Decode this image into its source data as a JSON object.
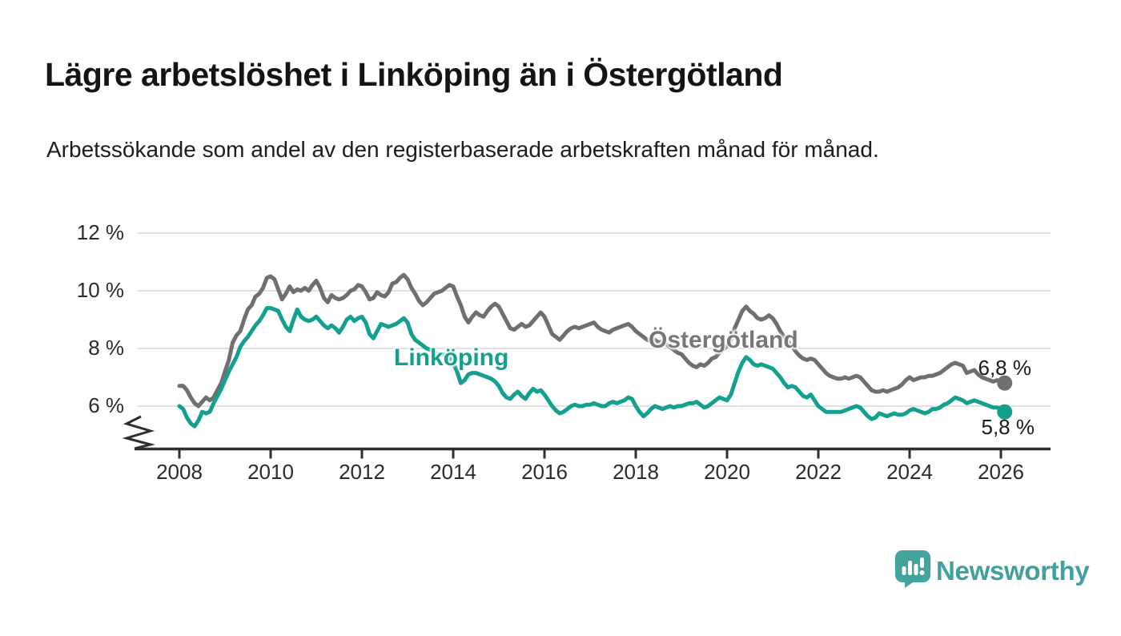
{
  "header": {
    "title": "Lägre arbetslöshet i Linköping än i Östergötland",
    "subtitle": "Arbetssökande som andel av den registerbaserade arbetskraften månad för månad."
  },
  "branding": {
    "logo_text": "Newsworthy",
    "logo_color": "#3FA19D",
    "logo_icon": "bar-chart-speech-bubble-icon"
  },
  "chart_data": {
    "type": "line",
    "title": "Lägre arbetslöshet i Linköping än i Östergötland",
    "subtitle": "Arbetssökande som andel av den registerbaserade arbetskraften månad för månad.",
    "grid": "horizontal",
    "legend_position": "inline-labels",
    "colors": {
      "grid": "#E1E1E1",
      "axis": "#2E2E2E",
      "text": "#2b2b2b"
    },
    "y_axis": {
      "unit": "%",
      "broken_axis": true,
      "ticks": [
        12,
        10,
        8,
        6
      ],
      "tick_labels": [
        "12 %",
        "10 %",
        "8 %",
        "6 %"
      ],
      "range_shown": [
        5.0,
        12.3
      ]
    },
    "x_axis": {
      "ticks": [
        2008,
        2010,
        2012,
        2014,
        2016,
        2018,
        2020,
        2022,
        2024,
        2026
      ],
      "tick_labels": [
        "2008",
        "2010",
        "2012",
        "2014",
        "2016",
        "2018",
        "2020",
        "2022",
        "2024",
        "2026"
      ],
      "range": [
        2008.0,
        2026.17
      ]
    },
    "series": [
      {
        "name": "Östergötland",
        "color": "#6F6F72",
        "end_label": "6,8 %",
        "end_value": 6.8,
        "start_year": 2008,
        "points_per_year": 12,
        "values": [
          6.7,
          6.7,
          6.55,
          6.3,
          6.1,
          6.0,
          6.15,
          6.3,
          6.2,
          6.3,
          6.55,
          6.8,
          7.2,
          7.6,
          8.2,
          8.45,
          8.6,
          9.0,
          9.35,
          9.5,
          9.8,
          9.9,
          10.1,
          10.45,
          10.5,
          10.4,
          10.05,
          9.7,
          9.9,
          10.15,
          9.95,
          10.05,
          10.0,
          10.1,
          10.0,
          10.2,
          10.35,
          10.1,
          9.75,
          9.6,
          9.85,
          9.75,
          9.7,
          9.75,
          9.85,
          10.0,
          10.05,
          10.2,
          10.15,
          9.95,
          9.7,
          9.75,
          9.95,
          9.85,
          9.8,
          9.95,
          10.25,
          10.3,
          10.45,
          10.55,
          10.4,
          10.1,
          9.9,
          9.65,
          9.5,
          9.6,
          9.75,
          9.9,
          9.95,
          10.0,
          10.1,
          10.2,
          10.15,
          9.8,
          9.5,
          9.1,
          8.9,
          9.1,
          9.25,
          9.15,
          9.1,
          9.3,
          9.45,
          9.55,
          9.45,
          9.2,
          8.95,
          8.7,
          8.65,
          8.75,
          8.85,
          8.75,
          8.8,
          8.95,
          9.1,
          9.25,
          9.1,
          8.8,
          8.5,
          8.4,
          8.3,
          8.45,
          8.6,
          8.7,
          8.75,
          8.7,
          8.75,
          8.8,
          8.85,
          8.9,
          8.75,
          8.65,
          8.6,
          8.55,
          8.65,
          8.7,
          8.75,
          8.8,
          8.85,
          8.75,
          8.6,
          8.5,
          8.4,
          8.3,
          8.25,
          8.3,
          8.2,
          8.25,
          8.15,
          8.05,
          7.95,
          7.85,
          7.8,
          7.65,
          7.5,
          7.4,
          7.35,
          7.45,
          7.4,
          7.5,
          7.65,
          7.7,
          7.85,
          7.95,
          8.1,
          8.3,
          8.7,
          9.0,
          9.3,
          9.45,
          9.3,
          9.2,
          9.05,
          9.0,
          9.05,
          9.15,
          9.05,
          8.85,
          8.6,
          8.4,
          8.25,
          8.1,
          7.9,
          7.75,
          7.65,
          7.6,
          7.65,
          7.6,
          7.45,
          7.3,
          7.15,
          7.05,
          7.0,
          6.95,
          6.95,
          7.0,
          6.95,
          7.0,
          7.05,
          7.0,
          6.85,
          6.7,
          6.55,
          6.5,
          6.5,
          6.55,
          6.5,
          6.55,
          6.6,
          6.65,
          6.75,
          6.9,
          7.0,
          6.9,
          6.95,
          7.0,
          7.0,
          7.05,
          7.05,
          7.1,
          7.15,
          7.25,
          7.35,
          7.45,
          7.5,
          7.45,
          7.4,
          7.15,
          7.2,
          7.25,
          7.1,
          7.0,
          6.95,
          6.9,
          6.85,
          6.9,
          6.85,
          6.8
        ]
      },
      {
        "name": "Linköping",
        "color": "#13A08E",
        "end_label": "5,8 %",
        "end_value": 5.8,
        "start_year": 2008,
        "points_per_year": 12,
        "values": [
          6.0,
          5.9,
          5.6,
          5.4,
          5.3,
          5.5,
          5.8,
          5.75,
          5.8,
          6.1,
          6.35,
          6.6,
          6.9,
          7.2,
          7.45,
          7.7,
          8.05,
          8.25,
          8.4,
          8.6,
          8.8,
          8.95,
          9.15,
          9.4,
          9.4,
          9.35,
          9.3,
          9.0,
          8.75,
          8.6,
          9.0,
          9.35,
          9.1,
          9.0,
          8.95,
          9.0,
          9.1,
          8.95,
          8.8,
          8.7,
          8.8,
          8.7,
          8.55,
          8.75,
          9.0,
          9.1,
          8.95,
          9.05,
          9.1,
          8.9,
          8.5,
          8.35,
          8.6,
          8.85,
          8.8,
          8.75,
          8.8,
          8.85,
          8.95,
          9.05,
          8.9,
          8.5,
          8.3,
          8.2,
          8.1,
          8.0,
          7.95,
          7.85,
          7.8,
          7.8,
          7.75,
          7.7,
          7.5,
          7.2,
          6.8,
          6.9,
          7.1,
          7.15,
          7.15,
          7.1,
          7.05,
          7.0,
          6.95,
          6.85,
          6.7,
          6.45,
          6.3,
          6.25,
          6.4,
          6.5,
          6.35,
          6.25,
          6.45,
          6.6,
          6.5,
          6.55,
          6.4,
          6.2,
          6.0,
          5.85,
          5.75,
          5.8,
          5.9,
          6.0,
          6.05,
          6.0,
          6.0,
          6.05,
          6.05,
          6.1,
          6.05,
          6.0,
          6.0,
          6.1,
          6.15,
          6.1,
          6.15,
          6.2,
          6.3,
          6.25,
          6.0,
          5.8,
          5.65,
          5.75,
          5.9,
          6.0,
          5.95,
          5.9,
          5.95,
          6.0,
          5.95,
          6.0,
          6.0,
          6.05,
          6.1,
          6.1,
          6.15,
          6.05,
          5.95,
          6.0,
          6.1,
          6.2,
          6.3,
          6.25,
          6.2,
          6.4,
          6.8,
          7.2,
          7.5,
          7.7,
          7.6,
          7.45,
          7.4,
          7.45,
          7.4,
          7.35,
          7.3,
          7.15,
          7.0,
          6.8,
          6.65,
          6.7,
          6.65,
          6.5,
          6.35,
          6.3,
          6.4,
          6.2,
          6.0,
          5.9,
          5.8,
          5.8,
          5.8,
          5.8,
          5.8,
          5.85,
          5.9,
          5.95,
          6.0,
          5.95,
          5.8,
          5.65,
          5.55,
          5.6,
          5.75,
          5.7,
          5.65,
          5.7,
          5.75,
          5.7,
          5.7,
          5.75,
          5.85,
          5.9,
          5.85,
          5.8,
          5.75,
          5.8,
          5.9,
          5.9,
          5.95,
          6.05,
          6.1,
          6.2,
          6.3,
          6.25,
          6.2,
          6.1,
          6.15,
          6.2,
          6.15,
          6.1,
          6.05,
          6.0,
          5.95,
          5.95,
          5.9,
          5.8
        ]
      }
    ]
  }
}
